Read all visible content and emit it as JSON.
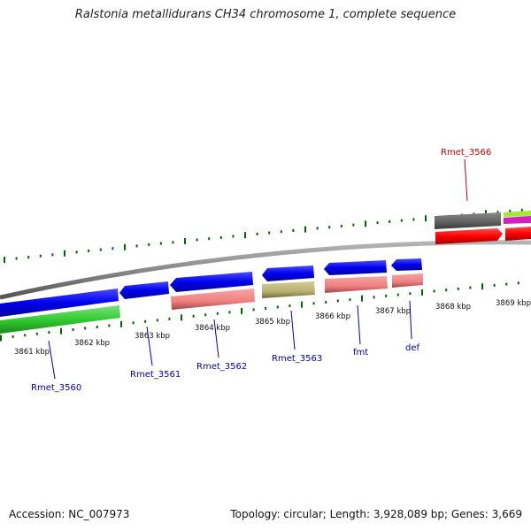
{
  "title": "Ralstonia metallidurans CH34 chromosome 1, complete sequence",
  "footer": {
    "accession": "Accession: NC_007973",
    "summary": "Topology: circular; Length: 3,928,089 bp; Genes: 3,669"
  },
  "ruler": [
    "3861 kbp",
    "3862 kbp",
    "3863 kbp",
    "3864 kbp",
    "3865 kbp",
    "3866 kbp",
    "3867 kbp",
    "3868 kbp",
    "3869 kbp"
  ],
  "gene_labels": [
    "Rmet_3560",
    "Rmet_3561",
    "Rmet_3562",
    "Rmet_3563",
    "fmt",
    "def",
    "Rmet_3566"
  ],
  "colors": {
    "blue_gene": "#0000ee",
    "green_gene": "#33cc33",
    "pink_gene": "#f08080",
    "olive_gene": "#b8b070",
    "red_gene": "#ff0000",
    "gray_gene": "#666666",
    "label_blue": "#0000aa",
    "label_red": "#cc0000",
    "tick_green": "#006600"
  }
}
